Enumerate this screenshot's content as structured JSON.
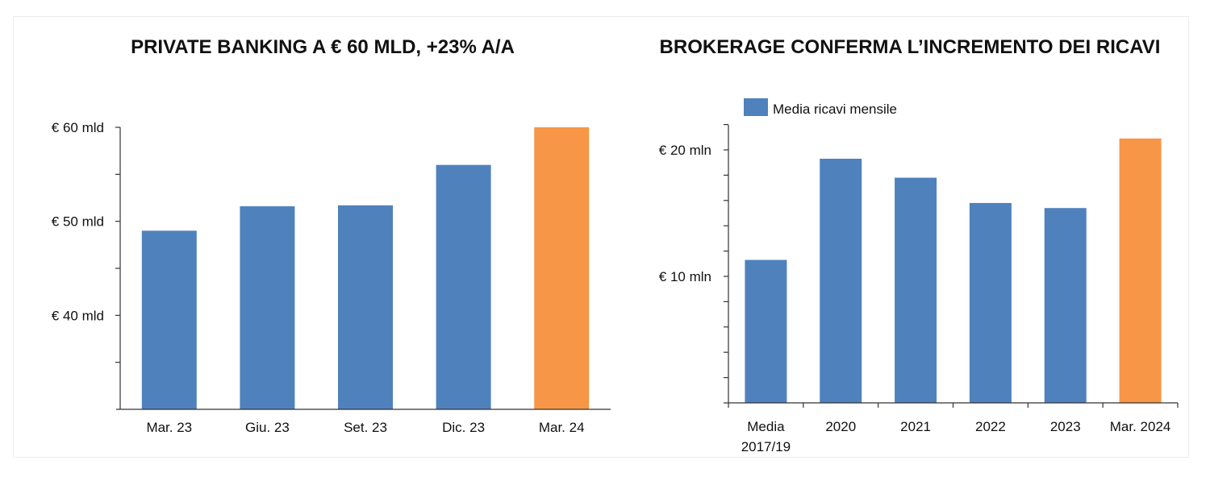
{
  "chart_data": [
    {
      "type": "bar",
      "title": "PRIVATE BANKING A € 60 MLD, +23% A/A",
      "categories": [
        "Mar. 23",
        "Giu. 23",
        "Set. 23",
        "Dic. 23",
        "Mar. 24"
      ],
      "values": [
        49,
        51.6,
        51.7,
        56,
        60
      ],
      "unit": "mld",
      "ylim": [
        30,
        60
      ],
      "yticks": [
        {
          "value": 60,
          "label": "€ 60 mld"
        },
        {
          "value": 50,
          "label": "€ 50 mld"
        },
        {
          "value": 40,
          "label": "€ 40 mld"
        }
      ],
      "colors": [
        "#4F81BD",
        "#4F81BD",
        "#4F81BD",
        "#4F81BD",
        "#F79646"
      ],
      "xlabel": "",
      "ylabel": ""
    },
    {
      "type": "bar",
      "title": "BROKERAGE CONFERMA L’INCREMENTO DEI RICAVI",
      "legend": "Media ricavi mensile",
      "categories": [
        "Media 2017/19",
        "2020",
        "2021",
        "2022",
        "2023",
        "Mar. 2024"
      ],
      "values": [
        11.3,
        19.3,
        17.8,
        15.8,
        15.4,
        20.9
      ],
      "unit": "mln",
      "ylim": [
        0,
        22
      ],
      "yticks": [
        {
          "value": 20,
          "label": "€ 20 mln"
        },
        {
          "value": 10,
          "label": "€ 10 mln"
        }
      ],
      "colors": [
        "#4F81BD",
        "#4F81BD",
        "#4F81BD",
        "#4F81BD",
        "#4F81BD",
        "#F79646"
      ],
      "legend_color": "#4F81BD",
      "xlabel": "",
      "ylabel": ""
    }
  ]
}
